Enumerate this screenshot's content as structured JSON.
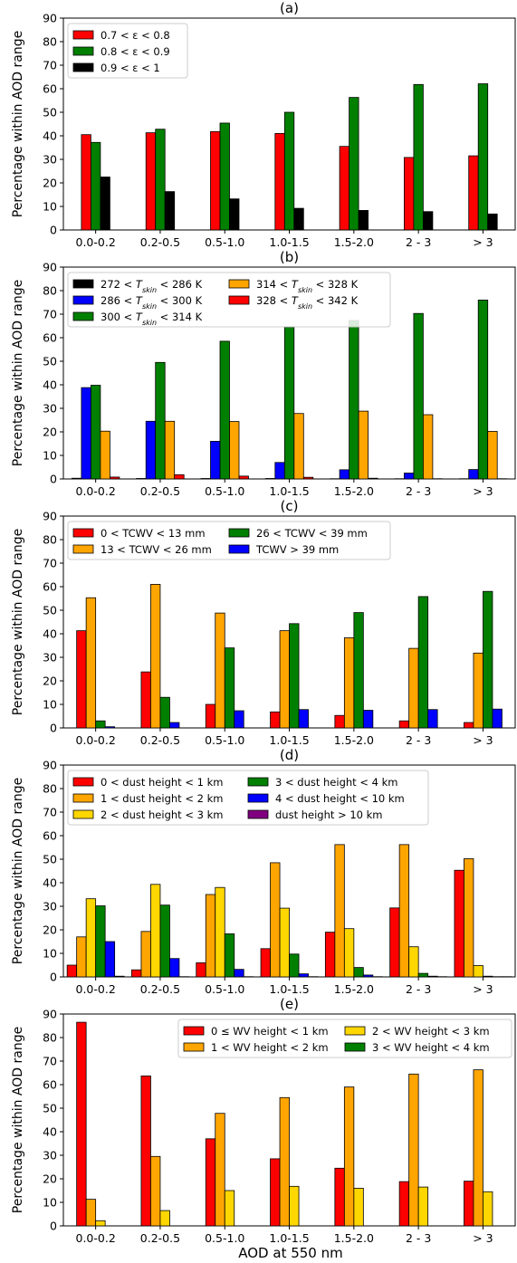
{
  "figure": {
    "xlabel": "AOD at 550 nm"
  },
  "chart_data": [
    {
      "type": "bar",
      "title": "(a)",
      "ylabel": "Percentage within AOD range",
      "ylim": [
        0,
        90
      ],
      "yticks": [
        0,
        10,
        20,
        30,
        40,
        50,
        60,
        70,
        80,
        90
      ],
      "legend_position": "top-left",
      "legend_columns": 1,
      "categories": [
        "0.0-0.2",
        "0.2-0.5",
        "0.5-1.0",
        "1.0-1.5",
        "1.5-2.0",
        "2 - 3",
        "> 3"
      ],
      "series": [
        {
          "name": "0.7 < ε < 0.8",
          "color": "#ff0000",
          "values": [
            40.5,
            41.3,
            41.8,
            41.0,
            35.5,
            30.8,
            31.5
          ]
        },
        {
          "name": "0.8 < ε < 0.9",
          "color": "#007f00",
          "values": [
            37.2,
            42.8,
            45.4,
            50.0,
            56.3,
            61.8,
            62.1
          ]
        },
        {
          "name": "0.9 < ε < 1",
          "color": "#000000",
          "values": [
            22.5,
            16.3,
            13.2,
            9.2,
            8.3,
            7.8,
            6.8
          ]
        }
      ]
    },
    {
      "type": "bar",
      "title": "(b)",
      "ylabel": "Percentage within AOD range",
      "ylim": [
        0,
        90
      ],
      "yticks": [
        0,
        10,
        20,
        30,
        40,
        50,
        60,
        70,
        80,
        90
      ],
      "legend_position": "top-left",
      "legend_columns": 2,
      "categories": [
        "0.0-0.2",
        "0.2-0.5",
        "0.5-1.0",
        "1.0-1.5",
        "1.5-2.0",
        "2 - 3",
        "> 3"
      ],
      "series": [
        {
          "name": "272 < T_skin < 286 K",
          "color": "#000000",
          "values": [
            0.3,
            0.2,
            0.2,
            0.2,
            0.1,
            0.1,
            0.1
          ]
        },
        {
          "name": "286 < T_skin < 300 K",
          "color": "#0000ff",
          "values": [
            38.8,
            24.5,
            16.0,
            7.0,
            3.9,
            2.5,
            4.0
          ]
        },
        {
          "name": "300 < T_skin < 314 K",
          "color": "#007f00",
          "values": [
            39.8,
            49.5,
            58.5,
            64.5,
            67.3,
            70.3,
            76.0
          ]
        },
        {
          "name": "314 < T_skin < 328 K",
          "color": "#ffa500",
          "values": [
            20.3,
            24.5,
            24.4,
            27.8,
            28.8,
            27.3,
            20.2
          ]
        },
        {
          "name": "328 < T_skin < 342 K",
          "color": "#ff0000",
          "values": [
            0.8,
            1.8,
            1.2,
            0.7,
            0.3,
            0.1,
            0.1
          ]
        }
      ]
    },
    {
      "type": "bar",
      "title": "(c)",
      "ylabel": "Percentage within AOD range",
      "ylim": [
        0,
        90
      ],
      "yticks": [
        0,
        10,
        20,
        30,
        40,
        50,
        60,
        70,
        80,
        90
      ],
      "legend_position": "top-left",
      "legend_columns": 2,
      "categories": [
        "0.0-0.2",
        "0.2-0.5",
        "0.5-1.0",
        "1.0-1.5",
        "1.5-2.0",
        "2 - 3",
        "> 3"
      ],
      "series": [
        {
          "name": "0 < TCWV < 13 mm",
          "color": "#ff0000",
          "values": [
            41.3,
            23.8,
            10.0,
            6.8,
            5.3,
            3.0,
            2.3
          ]
        },
        {
          "name": "13 < TCWV < 26 mm",
          "color": "#ffa500",
          "values": [
            55.3,
            61.0,
            48.8,
            41.3,
            38.3,
            33.8,
            31.8
          ]
        },
        {
          "name": "26 < TCWV < 39 mm",
          "color": "#007f00",
          "values": [
            3.0,
            13.0,
            34.0,
            44.3,
            49.0,
            55.8,
            58.0
          ]
        },
        {
          "name": "TCWV > 39 mm",
          "color": "#0000ff",
          "values": [
            0.5,
            2.3,
            7.3,
            7.8,
            7.5,
            7.8,
            8.0
          ]
        }
      ]
    },
    {
      "type": "bar",
      "title": "(d)",
      "ylabel": "Percentage within AOD range",
      "ylim": [
        0,
        90
      ],
      "yticks": [
        0,
        10,
        20,
        30,
        40,
        50,
        60,
        70,
        80,
        90
      ],
      "legend_position": "top-left",
      "legend_columns": 2,
      "categories": [
        "0.0-0.2",
        "0.2-0.5",
        "0.5-1.0",
        "1.0-1.5",
        "1.5-2.0",
        "2 - 3",
        "> 3"
      ],
      "series": [
        {
          "name": "0 < dust height < 1 km",
          "color": "#ff0000",
          "values": [
            5.0,
            3.0,
            6.0,
            12.0,
            19.0,
            29.3,
            45.3
          ]
        },
        {
          "name": "1 < dust height < 2 km",
          "color": "#ffa500",
          "values": [
            17.0,
            19.3,
            35.0,
            48.5,
            56.2,
            56.2,
            50.2
          ]
        },
        {
          "name": "2 < dust height < 3 km",
          "color": "#ffd700",
          "values": [
            33.2,
            39.3,
            38.0,
            29.2,
            20.5,
            12.8,
            4.8
          ]
        },
        {
          "name": "3 < dust height < 4 km",
          "color": "#007f00",
          "values": [
            30.2,
            30.5,
            18.3,
            9.7,
            4.0,
            1.5,
            0.3
          ]
        },
        {
          "name": "4 < dust height < 10 km",
          "color": "#0000ff",
          "values": [
            15.0,
            7.8,
            3.2,
            1.3,
            0.8,
            0.3,
            0.1
          ]
        },
        {
          "name": "dust height > 10 km",
          "color": "#800080",
          "values": [
            0.3,
            0.1,
            0.1,
            0.1,
            0.1,
            0.1,
            0.1
          ]
        }
      ]
    },
    {
      "type": "bar",
      "title": "(e)",
      "ylabel": "Percentage within AOD range",
      "ylim": [
        0,
        90
      ],
      "yticks": [
        0,
        10,
        20,
        30,
        40,
        50,
        60,
        70,
        80,
        90
      ],
      "legend_position": "top-right",
      "legend_columns": 2,
      "categories": [
        "0.0-0.2",
        "0.2-0.5",
        "0.5-1.0",
        "1.0-1.5",
        "1.5-2.0",
        "2 - 3",
        "> 3"
      ],
      "series": [
        {
          "name": "0 ≤ WV height < 1 km",
          "color": "#ff0000",
          "values": [
            86.5,
            63.7,
            37.0,
            28.5,
            24.5,
            18.8,
            19.0
          ]
        },
        {
          "name": "1 < WV height < 2 km",
          "color": "#ffa500",
          "values": [
            11.3,
            29.5,
            47.8,
            54.5,
            59.0,
            64.5,
            66.3
          ]
        },
        {
          "name": "2 < WV height < 3 km",
          "color": "#ffd700",
          "values": [
            2.2,
            6.5,
            15.0,
            16.8,
            16.0,
            16.5,
            14.5
          ]
        },
        {
          "name": "3 < WV height < 4 km",
          "color": "#007f00",
          "values": [
            0,
            0,
            0,
            0,
            0,
            0,
            0
          ]
        }
      ]
    }
  ]
}
